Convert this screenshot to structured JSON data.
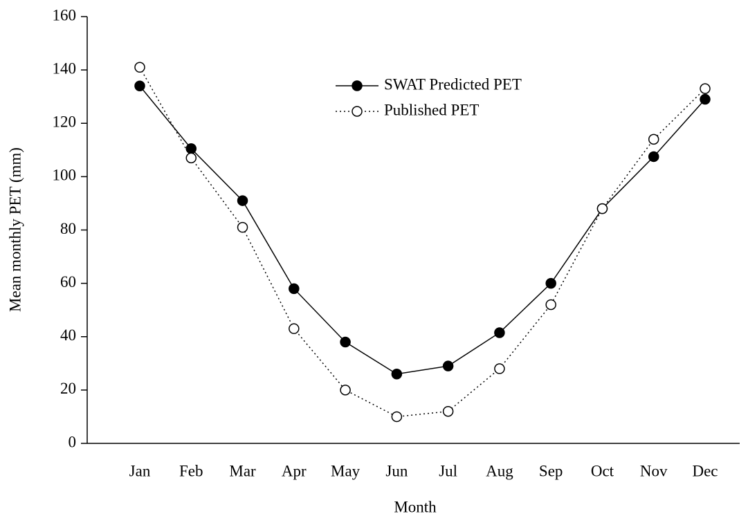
{
  "chart_data": {
    "type": "line",
    "xlabel": "Month",
    "ylabel": "Mean monthly PET (mm)",
    "categories": [
      "Jan",
      "Feb",
      "Mar",
      "Apr",
      "May",
      "Jun",
      "Jul",
      "Aug",
      "Sep",
      "Oct",
      "Nov",
      "Dec"
    ],
    "series": [
      {
        "name": "SWAT Predicted PET",
        "color": "#000000",
        "line": "solid",
        "marker": "filled",
        "values": [
          134,
          110.5,
          91,
          58,
          38,
          26,
          29,
          41.5,
          60,
          88,
          107.5,
          129
        ]
      },
      {
        "name": "Published PET",
        "color": "#000000",
        "line": "dotted",
        "marker": "open",
        "values": [
          141,
          107,
          81,
          43,
          20,
          10,
          12,
          28,
          52,
          88,
          114,
          133
        ]
      }
    ],
    "ylim": [
      0,
      160
    ],
    "yticks": [
      0,
      20,
      40,
      60,
      80,
      100,
      120,
      140,
      160
    ],
    "grid": false
  }
}
